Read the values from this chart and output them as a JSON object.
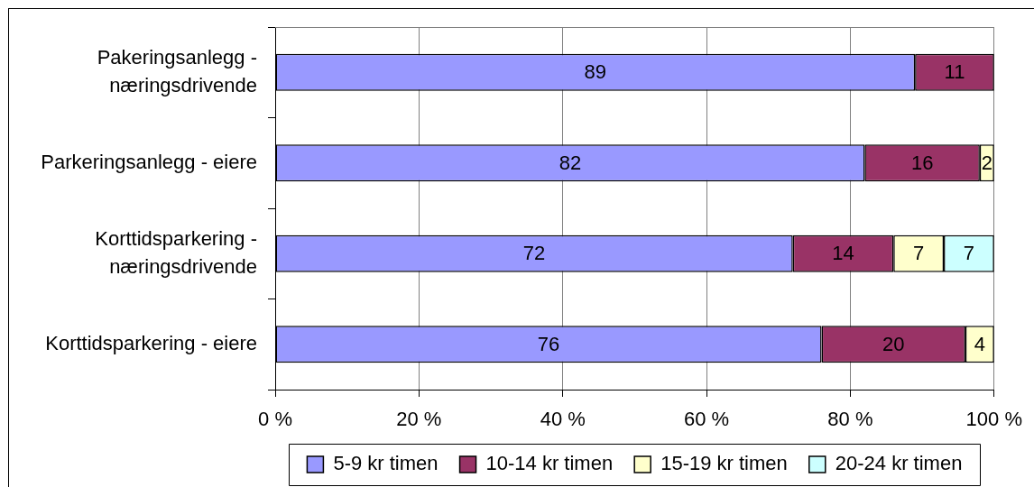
{
  "chart_data": {
    "type": "bar",
    "orientation": "horizontal",
    "stacked": true,
    "categories": [
      "Pakeringsanlegg - næringsdrivende",
      "Parkeringsanlegg - eiere",
      "Korttidsparkering - næringsdrivende",
      "Korttidsparkering - eiere"
    ],
    "series": [
      {
        "name": "5-9 kr timen",
        "color": "#9999ff",
        "values": [
          89,
          82,
          72,
          76
        ]
      },
      {
        "name": "10-14 kr timen",
        "color": "#993366",
        "values": [
          11,
          16,
          14,
          20
        ]
      },
      {
        "name": "15-19 kr timen",
        "color": "#ffffcc",
        "values": [
          null,
          2,
          7,
          4
        ]
      },
      {
        "name": "20-24 kr timen",
        "color": "#ccffff",
        "values": [
          null,
          null,
          7,
          null
        ]
      }
    ],
    "xlim": [
      0,
      100
    ],
    "xticks": [
      {
        "value": 0,
        "label": "0 %"
      },
      {
        "value": 20,
        "label": "20 %"
      },
      {
        "value": 40,
        "label": "40 %"
      },
      {
        "value": 60,
        "label": "60 %"
      },
      {
        "value": 80,
        "label": "80 %"
      },
      {
        "value": 100,
        "label": "100 %"
      }
    ],
    "grid": "x",
    "legend": "bottom",
    "data_labels": true
  }
}
